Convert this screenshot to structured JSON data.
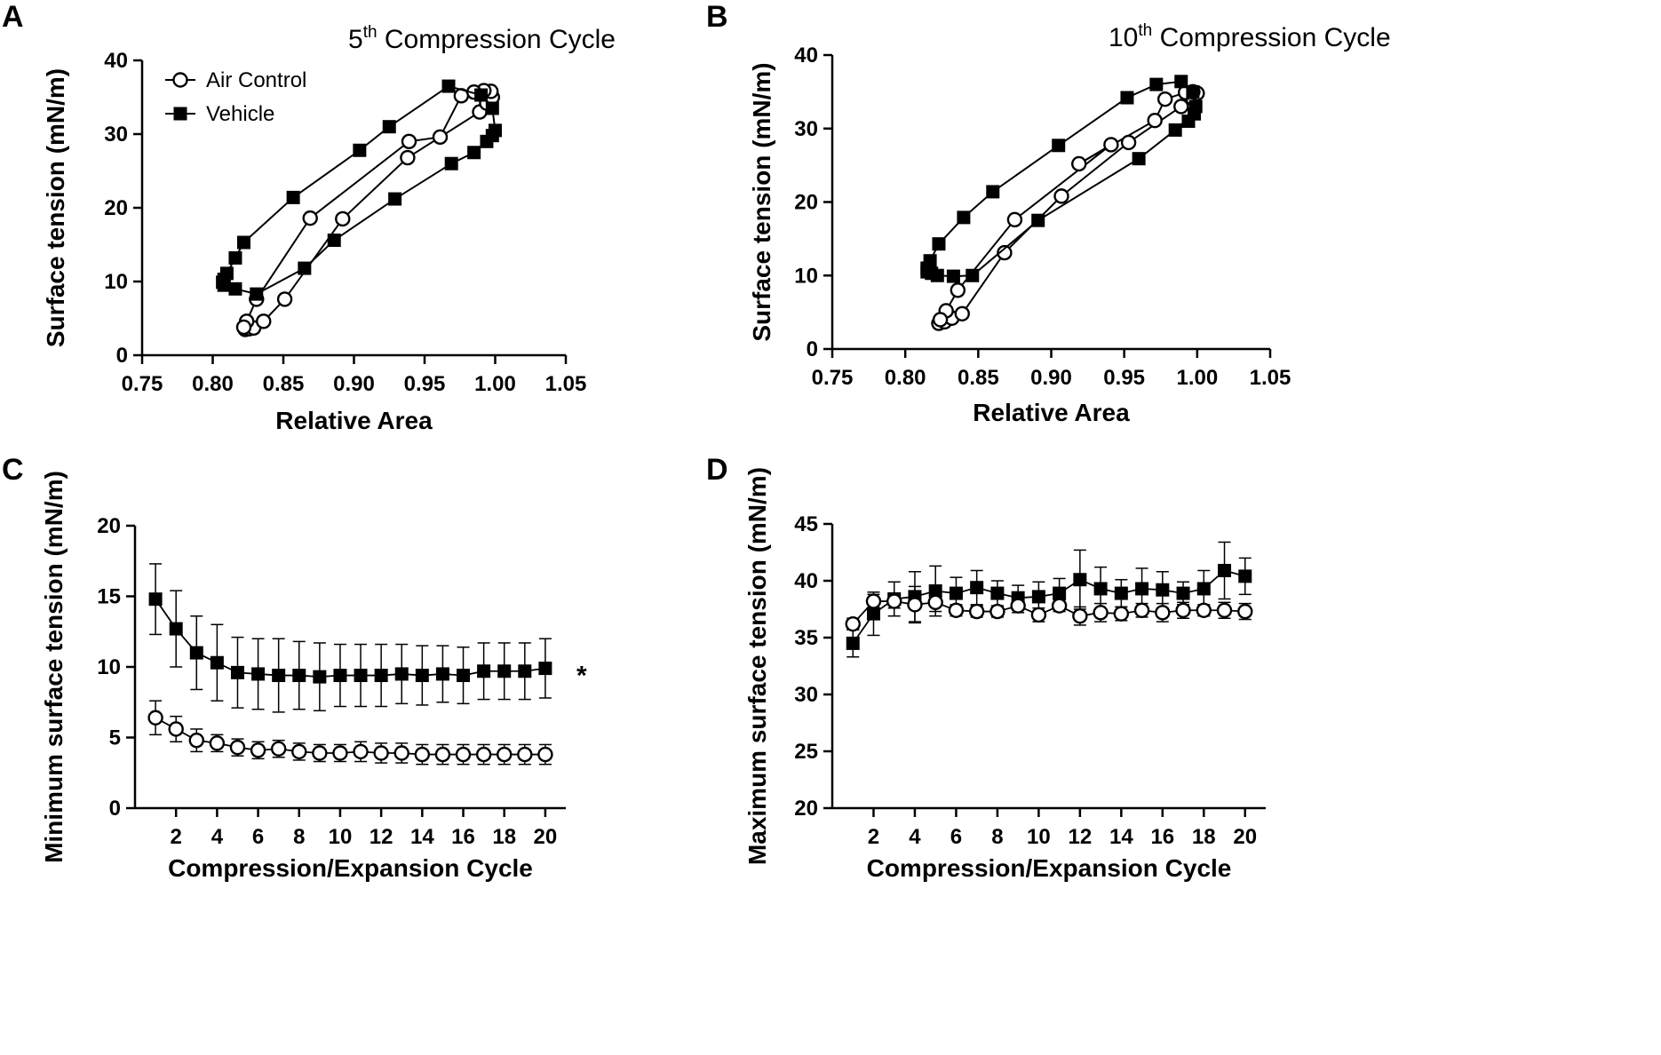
{
  "colors": {
    "ink": "#000000",
    "open_marker_fill": "#ffffff",
    "filled_marker_fill": "#000000"
  },
  "chart_data": [
    {
      "panel": "A",
      "type": "scatter",
      "title": "5th Compression Cycle",
      "title_main": "5",
      "title_sup": "th",
      "title_rest": " Compression Cycle",
      "xlabel": "Relative Area",
      "ylabel": "Surface tension (mN/m)",
      "xlim": [
        0.75,
        1.05
      ],
      "ylim": [
        0,
        40
      ],
      "xticks": [
        "0.75",
        "0.80",
        "0.85",
        "0.90",
        "0.95",
        "1.00",
        "1.05"
      ],
      "yticks": [
        "0",
        "10",
        "20",
        "30",
        "40"
      ],
      "legend": {
        "position": "top-left",
        "entries": [
          {
            "label": "Air Control",
            "marker": "open-circle"
          },
          {
            "label": "Vehicle",
            "marker": "filled-square"
          }
        ]
      },
      "series": [
        {
          "name": "Air Control",
          "marker": "open-circle",
          "points": [
            [
              0.823,
              3.5
            ],
            [
              0.826,
              3.6
            ],
            [
              0.829,
              3.7
            ],
            [
              0.836,
              4.6
            ],
            [
              0.851,
              7.6
            ],
            [
              0.892,
              18.5
            ],
            [
              0.938,
              26.8
            ],
            [
              0.989,
              33.0
            ],
            [
              0.994,
              34.2
            ],
            [
              0.998,
              35.0
            ],
            [
              0.997,
              35.8
            ],
            [
              0.992,
              35.9
            ],
            [
              0.985,
              35.7
            ],
            [
              0.976,
              35.2
            ],
            [
              0.961,
              29.6
            ],
            [
              0.939,
              29.0
            ],
            [
              0.869,
              18.6
            ],
            [
              0.831,
              7.6
            ],
            [
              0.824,
              4.6
            ],
            [
              0.822,
              3.8
            ]
          ]
        },
        {
          "name": "Vehicle",
          "marker": "filled-square",
          "points": [
            [
              0.807,
              9.9
            ],
            [
              0.808,
              9.5
            ],
            [
              0.816,
              9.0
            ],
            [
              0.831,
              8.3
            ],
            [
              0.865,
              11.8
            ],
            [
              0.886,
              15.6
            ],
            [
              0.929,
              21.2
            ],
            [
              0.969,
              26.0
            ],
            [
              0.985,
              27.5
            ],
            [
              0.994,
              29.0
            ],
            [
              0.998,
              29.8
            ],
            [
              1.0,
              30.5
            ],
            [
              0.998,
              33.5
            ],
            [
              0.99,
              35.3
            ],
            [
              0.967,
              36.5
            ],
            [
              0.925,
              31.0
            ],
            [
              0.904,
              27.8
            ],
            [
              0.857,
              21.4
            ],
            [
              0.822,
              15.3
            ],
            [
              0.816,
              13.2
            ],
            [
              0.81,
              11.1
            ],
            [
              0.808,
              10.3
            ]
          ]
        }
      ]
    },
    {
      "panel": "B",
      "type": "scatter",
      "title": "10th Compression Cycle",
      "title_main": "10",
      "title_sup": "th",
      "title_rest": " Compression Cycle",
      "xlabel": "Relative Area",
      "ylabel": "Surface tension (mN/m)",
      "xlim": [
        0.75,
        1.05
      ],
      "ylim": [
        0,
        40
      ],
      "xticks": [
        "0.75",
        "0.80",
        "0.85",
        "0.90",
        "0.95",
        "1.00",
        "1.05"
      ],
      "yticks": [
        "0",
        "10",
        "20",
        "30",
        "40"
      ],
      "series": [
        {
          "name": "Air Control",
          "marker": "open-circle",
          "points": [
            [
              0.823,
              3.5
            ],
            [
              0.827,
              3.7
            ],
            [
              0.832,
              4.2
            ],
            [
              0.839,
              4.8
            ],
            [
              0.868,
              13.1
            ],
            [
              0.907,
              20.8
            ],
            [
              0.953,
              28.1
            ],
            [
              0.989,
              33.0
            ],
            [
              0.997,
              34.1
            ],
            [
              1.0,
              34.8
            ],
            [
              0.997,
              35.0
            ],
            [
              0.992,
              34.9
            ],
            [
              0.978,
              34.0
            ],
            [
              0.971,
              31.1
            ],
            [
              0.919,
              25.2
            ],
            [
              0.941,
              27.8
            ],
            [
              0.875,
              17.6
            ],
            [
              0.836,
              8.0
            ],
            [
              0.828,
              5.2
            ],
            [
              0.824,
              4.0
            ]
          ]
        },
        {
          "name": "Vehicle",
          "marker": "filled-square",
          "points": [
            [
              0.815,
              10.5
            ],
            [
              0.818,
              10.3
            ],
            [
              0.822,
              10.0
            ],
            [
              0.833,
              9.9
            ],
            [
              0.846,
              10.0
            ],
            [
              0.891,
              17.5
            ],
            [
              0.96,
              25.9
            ],
            [
              0.985,
              29.8
            ],
            [
              0.994,
              31.0
            ],
            [
              0.998,
              32.0
            ],
            [
              0.999,
              33.0
            ],
            [
              0.997,
              35.0
            ],
            [
              0.989,
              36.4
            ],
            [
              0.972,
              36.0
            ],
            [
              0.952,
              34.2
            ],
            [
              0.905,
              27.7
            ],
            [
              0.86,
              21.4
            ],
            [
              0.84,
              17.9
            ],
            [
              0.823,
              14.3
            ],
            [
              0.817,
              12.0
            ],
            [
              0.815,
              11.0
            ]
          ]
        }
      ]
    },
    {
      "panel": "C",
      "type": "line",
      "xlabel": "Compression/Expansion Cycle",
      "ylabel": "Minimum surface tension (mN/m)",
      "xlim": [
        0,
        21
      ],
      "ylim": [
        0,
        20
      ],
      "xticks": [
        "2",
        "4",
        "6",
        "8",
        "10",
        "12",
        "14",
        "16",
        "18",
        "20"
      ],
      "yticks": [
        "0",
        "5",
        "10",
        "15",
        "20"
      ],
      "annotation": "*",
      "x": [
        1,
        2,
        3,
        4,
        5,
        6,
        7,
        8,
        9,
        10,
        11,
        12,
        13,
        14,
        15,
        16,
        17,
        18,
        19,
        20
      ],
      "series": [
        {
          "name": "Vehicle",
          "marker": "filled-square",
          "values": [
            14.8,
            12.7,
            11.0,
            10.3,
            9.6,
            9.5,
            9.4,
            9.4,
            9.3,
            9.4,
            9.4,
            9.4,
            9.5,
            9.4,
            9.5,
            9.4,
            9.7,
            9.7,
            9.7,
            9.9
          ],
          "errors": [
            2.5,
            2.7,
            2.6,
            2.7,
            2.5,
            2.5,
            2.6,
            2.4,
            2.4,
            2.2,
            2.2,
            2.2,
            2.1,
            2.1,
            2.0,
            2.0,
            2.0,
            2.0,
            2.0,
            2.1
          ]
        },
        {
          "name": "Air Control",
          "marker": "open-circle",
          "values": [
            6.4,
            5.6,
            4.8,
            4.6,
            4.3,
            4.1,
            4.2,
            4.0,
            3.9,
            3.9,
            4.0,
            3.9,
            3.9,
            3.8,
            3.8,
            3.8,
            3.8,
            3.8,
            3.8,
            3.8
          ],
          "errors": [
            1.2,
            0.9,
            0.8,
            0.6,
            0.6,
            0.6,
            0.6,
            0.6,
            0.6,
            0.6,
            0.7,
            0.7,
            0.7,
            0.7,
            0.7,
            0.7,
            0.7,
            0.7,
            0.7,
            0.7
          ]
        }
      ]
    },
    {
      "panel": "D",
      "type": "line",
      "xlabel": "Compression/Expansion Cycle",
      "ylabel": "Maximum surface tension (mN/m)",
      "xlim": [
        0,
        21
      ],
      "ylim": [
        20,
        45
      ],
      "xticks": [
        "2",
        "4",
        "6",
        "8",
        "10",
        "12",
        "14",
        "16",
        "18",
        "20"
      ],
      "yticks": [
        "20",
        "25",
        "30",
        "35",
        "40",
        "45"
      ],
      "x": [
        1,
        2,
        3,
        4,
        5,
        6,
        7,
        8,
        9,
        10,
        11,
        12,
        13,
        14,
        15,
        16,
        17,
        18,
        19,
        20
      ],
      "series": [
        {
          "name": "Vehicle",
          "marker": "filled-square",
          "values": [
            34.5,
            37.1,
            38.4,
            38.6,
            39.1,
            38.9,
            39.4,
            38.9,
            38.5,
            38.6,
            38.9,
            40.1,
            39.3,
            38.9,
            39.3,
            39.2,
            38.9,
            39.3,
            40.9,
            40.4
          ],
          "errors": [
            1.2,
            1.9,
            1.5,
            2.2,
            2.2,
            1.4,
            1.5,
            1.1,
            1.1,
            1.3,
            1.3,
            2.6,
            1.9,
            1.2,
            1.8,
            1.6,
            1.0,
            1.6,
            2.5,
            1.6
          ]
        },
        {
          "name": "Air Control",
          "marker": "open-circle",
          "values": [
            36.2,
            38.2,
            38.2,
            37.9,
            38.1,
            37.4,
            37.3,
            37.3,
            37.8,
            37.0,
            37.8,
            36.9,
            37.2,
            37.1,
            37.4,
            37.2,
            37.4,
            37.4,
            37.4,
            37.3
          ],
          "errors": [
            0.5,
            0.6,
            0.6,
            1.6,
            0.8,
            0.5,
            0.5,
            0.5,
            0.6,
            0.6,
            0.5,
            0.8,
            0.8,
            0.6,
            0.6,
            0.8,
            0.7,
            0.5,
            0.7,
            0.7
          ]
        }
      ]
    }
  ]
}
